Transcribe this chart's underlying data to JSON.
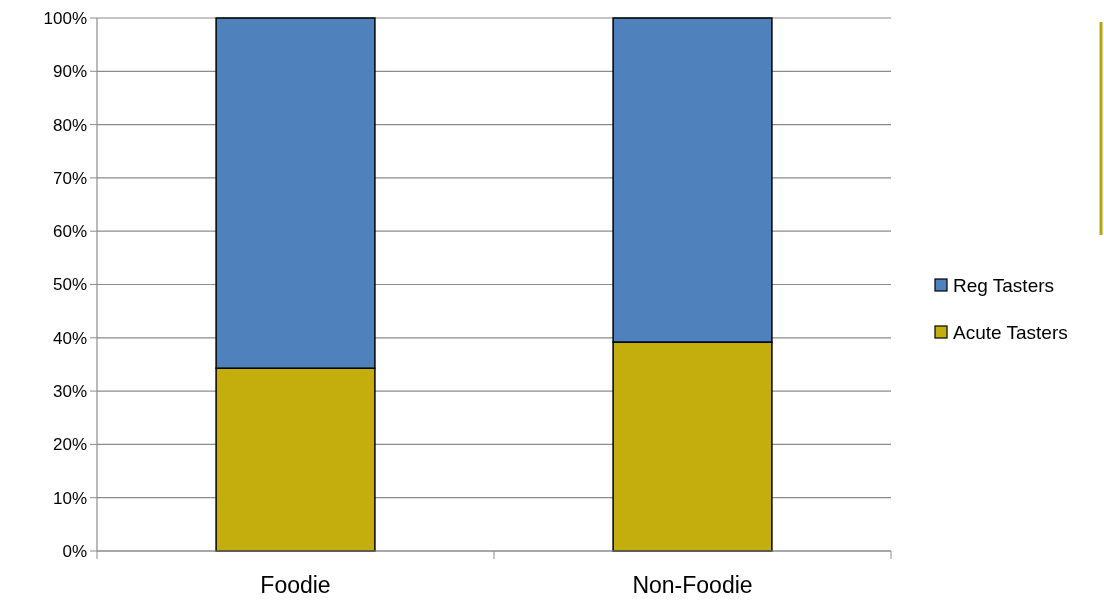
{
  "chart_data": {
    "type": "bar",
    "stacked": true,
    "categories": [
      "Foodie",
      "Non-Foodie"
    ],
    "series": [
      {
        "name": "Acute Tasters",
        "color": "#c4ae0e",
        "values": [
          34.3,
          39.2
        ]
      },
      {
        "name": "Reg Tasters",
        "color": "#4f81bd",
        "values": [
          65.7,
          60.8
        ]
      }
    ],
    "ylim": [
      0,
      100
    ],
    "yticks": [
      {
        "value": 0,
        "label": "0%"
      },
      {
        "value": 10,
        "label": "10%"
      },
      {
        "value": 20,
        "label": "20%"
      },
      {
        "value": 30,
        "label": "30%"
      },
      {
        "value": 40,
        "label": "40%"
      },
      {
        "value": 50,
        "label": "50%"
      },
      {
        "value": 60,
        "label": "60%"
      },
      {
        "value": 70,
        "label": "70%"
      },
      {
        "value": 80,
        "label": "80%"
      },
      {
        "value": 90,
        "label": "90%"
      },
      {
        "value": 100,
        "label": "100%"
      }
    ],
    "grid": "y",
    "legend": "right"
  }
}
